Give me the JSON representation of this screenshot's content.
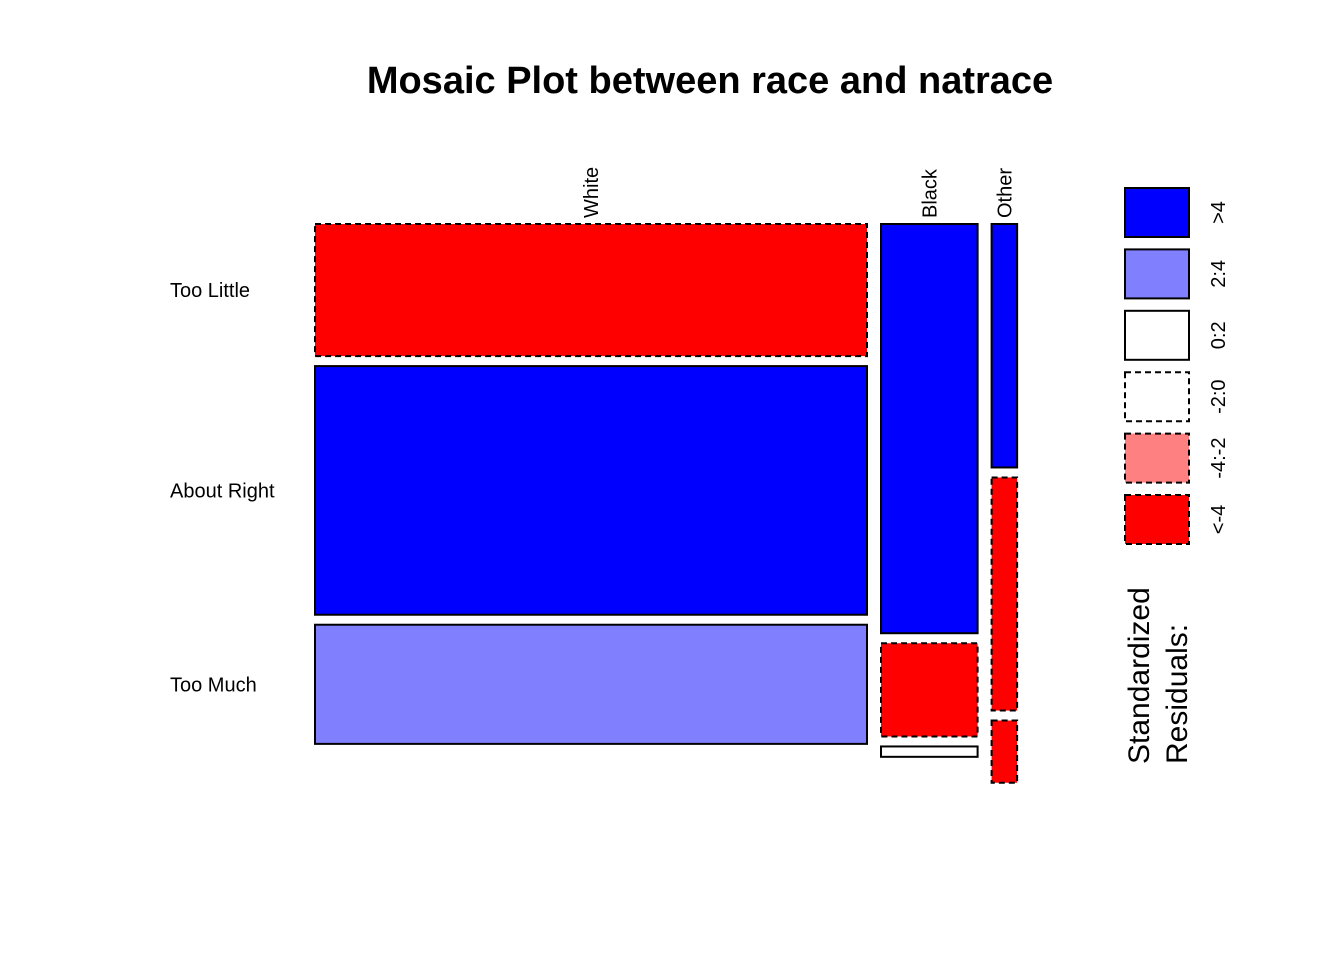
{
  "chart_data": {
    "type": "mosaic",
    "title": "Mosaic Plot between race and natrace",
    "columns": [
      "White",
      "Black",
      "Other"
    ],
    "rows": [
      "Too Little",
      "About Right",
      "Too Much"
    ],
    "column_proportions": [
      0.8,
      0.14,
      0.037
    ],
    "cell_proportions": [
      [
        0.255,
        0.48,
        0.23
      ],
      [
        0.79,
        0.18,
        0.02
      ],
      [
        0.47,
        0.45,
        0.12
      ]
    ],
    "residual_bin": [
      [
        "<-4",
        ">4",
        ">4"
      ],
      [
        ">4",
        "<-4",
        "<-4"
      ],
      [
        "2:4",
        "0:2",
        "<-4"
      ]
    ],
    "legend": {
      "title_lines": [
        "Standardized",
        "Residuals:"
      ],
      "bins": [
        {
          "label": ">4",
          "color": "#0000FF",
          "dashed": false
        },
        {
          "label": "2:4",
          "color": "#8080FF",
          "dashed": false
        },
        {
          "label": "0:2",
          "color": "#FFFFFF",
          "dashed": false
        },
        {
          "label": "-2:0",
          "color": "#FFFFFF",
          "dashed": true
        },
        {
          "label": "-4:-2",
          "color": "#FF8080",
          "dashed": true
        },
        {
          "label": "<-4",
          "color": "#FF0000",
          "dashed": true
        }
      ]
    }
  }
}
